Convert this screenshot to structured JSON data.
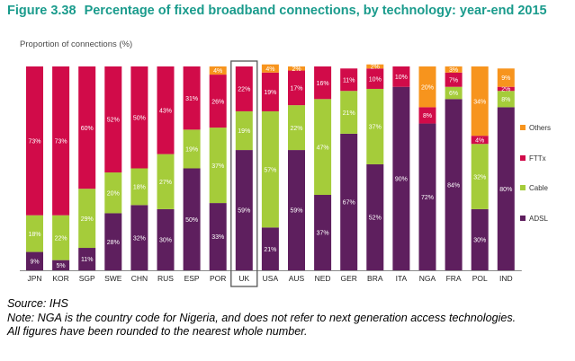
{
  "figure": {
    "number": "Figure 3.38",
    "title": "Percentage of fixed broadband connections, by technology: year-end 2015"
  },
  "source": "Source: IHS",
  "notes": [
    "Note: NGA is the country code for Nigeria, and does not refer to next generation access technologies.",
    "All figures have been rounded to the nearest whole number."
  ],
  "chart_data": {
    "type": "bar",
    "stacked": true,
    "ylabel": "Proportion of connections (%)",
    "ylim": [
      0,
      100
    ],
    "categories": [
      "JPN",
      "KOR",
      "SGP",
      "SWE",
      "CHN",
      "RUS",
      "ESP",
      "POR",
      "UK",
      "USA",
      "AUS",
      "NED",
      "GER",
      "BRA",
      "ITA",
      "NGA",
      "FRA",
      "POL",
      "IND"
    ],
    "highlighted_category": "UK",
    "legend_position": "right",
    "series": [
      {
        "name": "ADSL",
        "color": "#5e1f5e",
        "values": [
          9,
          5,
          11,
          28,
          32,
          30,
          50,
          33,
          59,
          21,
          59,
          37,
          67,
          52,
          90,
          72,
          84,
          30,
          80
        ]
      },
      {
        "name": "Cable",
        "color": "#a5cc3a",
        "values": [
          18,
          22,
          29,
          20,
          18,
          27,
          19,
          37,
          19,
          57,
          22,
          47,
          21,
          37,
          0,
          0,
          6,
          32,
          8
        ]
      },
      {
        "name": "FTTx",
        "color": "#d10b49",
        "values": [
          73,
          73,
          60,
          52,
          50,
          43,
          31,
          26,
          22,
          19,
          17,
          16,
          11,
          10,
          10,
          8,
          7,
          4,
          2
        ]
      },
      {
        "name": "Others",
        "color": "#f7941d",
        "values": [
          0,
          0,
          0,
          0,
          0,
          0,
          0,
          4,
          0,
          4,
          2,
          0,
          0,
          2,
          0,
          20,
          3,
          34,
          9
        ]
      }
    ],
    "data_labels": {
      "ADSL": [
        "9%",
        "5%",
        "11%",
        "28%",
        "32%",
        "30%",
        "50%",
        "33%",
        "59%",
        "21%",
        "59%",
        "37%",
        "67%",
        "52%",
        "90%",
        "72%",
        "84%",
        "30%",
        "80%"
      ],
      "Cable": [
        "18%",
        "22%",
        "29%",
        "20%",
        "18%",
        "27%",
        "19%",
        "37%",
        "19%",
        "57%",
        "22%",
        "47%",
        "21%",
        "37%",
        "",
        "",
        "6%",
        "32%",
        "8%"
      ],
      "FTTx": [
        "73%",
        "73%",
        "60%",
        "52%",
        "50%",
        "43%",
        "31%",
        "26%",
        "22%",
        "19%",
        "17%",
        "16%",
        "11%",
        "10%",
        "10%",
        "8%",
        "7%",
        "4%",
        "2%"
      ],
      "Others": [
        "",
        "",
        "",
        "",
        "",
        "",
        "",
        "4%",
        "",
        "4%",
        "2%",
        "",
        "",
        "2%",
        "",
        "20%",
        "3%",
        "34%",
        "9%"
      ]
    },
    "legend": [
      "Others",
      "FTTx",
      "Cable",
      "ADSL"
    ]
  }
}
